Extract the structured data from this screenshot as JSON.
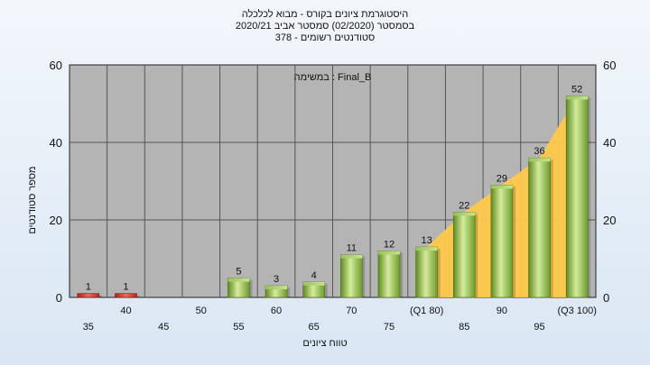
{
  "chart_data": {
    "type": "bar",
    "title_lines": [
      "היסטוגרמת ציונים בקורס - מבוא לכלכלה",
      "בסמסטר  (02/2020)  סמסטר אביב 2020/21",
      "סטודנטים רשומים - 378"
    ],
    "annotation": "במשימה : Final_B",
    "xlabel": "טווח ציונים",
    "ylabel": "מספר סטודנטים",
    "ylim": [
      0,
      60
    ],
    "yticks": [
      0,
      20,
      40,
      60
    ],
    "categories": [
      "35",
      "40",
      "45",
      "50",
      "55",
      "60",
      "65",
      "70",
      "75",
      "(Q1 80)",
      "85",
      "90",
      "95",
      "(Q3 100)"
    ],
    "values": [
      1,
      1,
      0,
      0,
      5,
      3,
      4,
      11,
      12,
      13,
      22,
      29,
      36,
      52
    ],
    "data_labels": [
      "1",
      "1",
      "",
      "",
      "5",
      "3",
      "4",
      "11",
      "12",
      "13",
      "22",
      "29",
      "36",
      "52"
    ],
    "highlight_area_from_category": "(Q1 80)",
    "colors": {
      "bar": "#8ab04a",
      "low_bar": "#d03a2e",
      "area": "#ffc94a",
      "plot_bg": "#b4b4b4",
      "grid": "#555555"
    },
    "grid": true,
    "legend": "none"
  }
}
